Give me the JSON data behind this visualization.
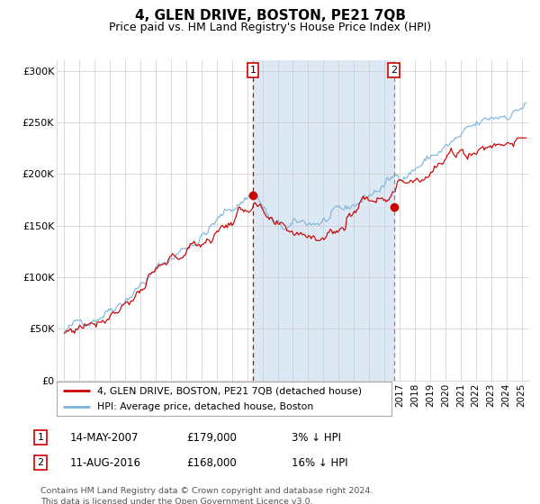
{
  "title": "4, GLEN DRIVE, BOSTON, PE21 7QB",
  "subtitle": "Price paid vs. HM Land Registry's House Price Index (HPI)",
  "title_fontsize": 11,
  "subtitle_fontsize": 9,
  "background_color": "#ffffff",
  "plot_bg_color": "#ffffff",
  "grid_color": "#cccccc",
  "shaded_region": [
    2007.37,
    2016.62
  ],
  "shaded_color": "#dce9f5",
  "hpi_color": "#7ab3d9",
  "price_color": "#cc0000",
  "vline1_x": 2007.37,
  "vline2_x": 2016.62,
  "point1_x": 2007.37,
  "point1_y": 179000,
  "point2_x": 2016.62,
  "point2_y": 168000,
  "legend1": "4, GLEN DRIVE, BOSTON, PE21 7QB (detached house)",
  "legend2": "HPI: Average price, detached house, Boston",
  "sale1_num": "1",
  "sale2_num": "2",
  "sale1_date": "14-MAY-2007",
  "sale1_price": "£179,000",
  "sale1_hpi": "3% ↓ HPI",
  "sale2_date": "11-AUG-2016",
  "sale2_price": "£168,000",
  "sale2_hpi": "16% ↓ HPI",
  "footer_line1": "Contains HM Land Registry data © Crown copyright and database right 2024.",
  "footer_line2": "This data is licensed under the Open Government Licence v3.0.",
  "ylim": [
    0,
    310000
  ],
  "yticks": [
    0,
    50000,
    100000,
    150000,
    200000,
    250000,
    300000
  ],
  "ytick_labels": [
    "£0",
    "£50K",
    "£100K",
    "£150K",
    "£200K",
    "£250K",
    "£300K"
  ],
  "xlim_start": 1994.5,
  "xlim_end": 2025.5,
  "xtick_start": 1995,
  "xtick_end": 2025
}
